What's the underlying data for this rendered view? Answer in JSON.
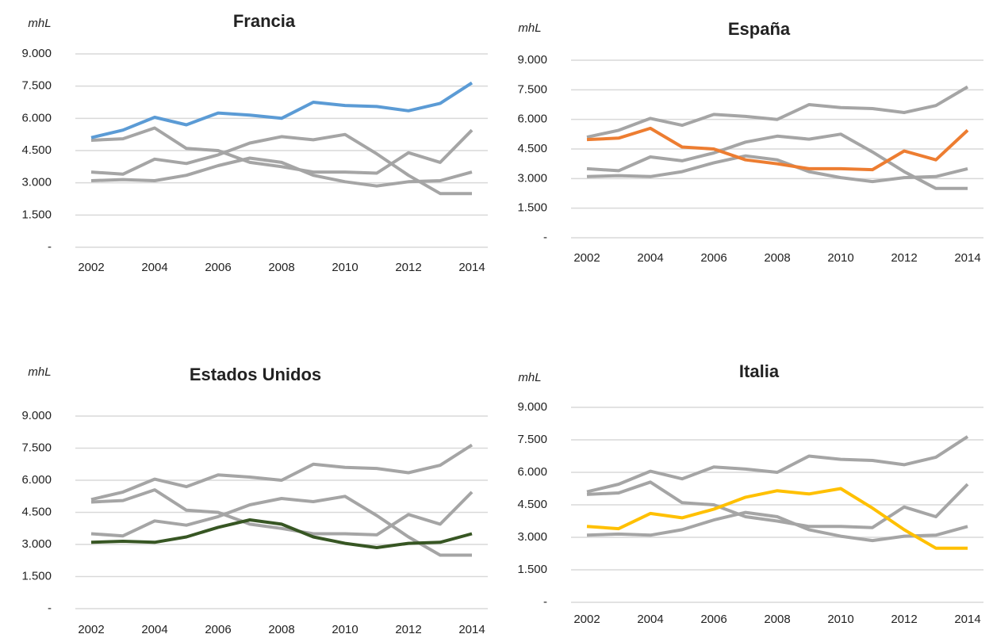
{
  "chart_data": [
    {
      "type": "line",
      "title": "Francia",
      "ylabel": "mhL",
      "x": [
        2002,
        2003,
        2004,
        2005,
        2006,
        2007,
        2008,
        2009,
        2010,
        2011,
        2012,
        2013,
        2014
      ],
      "series": [
        {
          "color": "#a5a5a5",
          "values": [
            4980,
            5050,
            5550,
            4600,
            4500,
            3950,
            3750,
            3500,
            3500,
            3450,
            4400,
            3950,
            5450
          ]
        },
        {
          "color": "#a5a5a5",
          "values": [
            3100,
            3150,
            3100,
            3350,
            3800,
            4150,
            3950,
            3350,
            3050,
            2850,
            3050,
            3100,
            3500
          ]
        },
        {
          "color": "#a5a5a5",
          "values": [
            3500,
            3400,
            4100,
            3900,
            4300,
            4850,
            5150,
            5000,
            5250,
            4350,
            3350,
            2500,
            2500
          ]
        },
        {
          "color": "#5b9bd5",
          "values": [
            5100,
            5450,
            6050,
            5700,
            6250,
            6150,
            6000,
            6750,
            6600,
            6550,
            6350,
            6700,
            7650
          ]
        }
      ],
      "xlim": [
        2001.5,
        2014.5
      ],
      "xticks": [
        2002,
        2004,
        2006,
        2008,
        2010,
        2012,
        2014
      ],
      "ylim": [
        0,
        9000
      ],
      "yticks": [
        {
          "value": 0,
          "label": "-"
        },
        {
          "value": 1500,
          "label": "1.500"
        },
        {
          "value": 3000,
          "label": "3.000"
        },
        {
          "value": 4500,
          "label": "4.500"
        },
        {
          "value": 6000,
          "label": "6.000"
        },
        {
          "value": 7500,
          "label": "7.500"
        },
        {
          "value": 9000,
          "label": "9.000"
        }
      ],
      "grid": true
    },
    {
      "type": "line",
      "title": "España",
      "ylabel": "mhL",
      "x": [
        2002,
        2003,
        2004,
        2005,
        2006,
        2007,
        2008,
        2009,
        2010,
        2011,
        2012,
        2013,
        2014
      ],
      "series": [
        {
          "color": "#a5a5a5",
          "values": [
            5100,
            5450,
            6050,
            5700,
            6250,
            6150,
            6000,
            6750,
            6600,
            6550,
            6350,
            6700,
            7650
          ]
        },
        {
          "color": "#a5a5a5",
          "values": [
            3100,
            3150,
            3100,
            3350,
            3800,
            4150,
            3950,
            3350,
            3050,
            2850,
            3050,
            3100,
            3500
          ]
        },
        {
          "color": "#a5a5a5",
          "values": [
            3500,
            3400,
            4100,
            3900,
            4300,
            4850,
            5150,
            5000,
            5250,
            4350,
            3350,
            2500,
            2500
          ]
        },
        {
          "color": "#ed7d31",
          "values": [
            4980,
            5050,
            5550,
            4600,
            4500,
            3950,
            3750,
            3500,
            3500,
            3450,
            4400,
            3950,
            5450
          ]
        }
      ],
      "xlim": [
        2001.5,
        2014.5
      ],
      "xticks": [
        2002,
        2004,
        2006,
        2008,
        2010,
        2012,
        2014
      ],
      "ylim": [
        0,
        9000
      ],
      "yticks": [
        {
          "value": 0,
          "label": "-"
        },
        {
          "value": 1500,
          "label": "1.500"
        },
        {
          "value": 3000,
          "label": "3.000"
        },
        {
          "value": 4500,
          "label": "4.500"
        },
        {
          "value": 6000,
          "label": "6.000"
        },
        {
          "value": 7500,
          "label": "7.500"
        },
        {
          "value": 9000,
          "label": "9.000"
        }
      ],
      "grid": true
    },
    {
      "type": "line",
      "title": "Estados Unidos",
      "ylabel": "mhL",
      "x": [
        2002,
        2003,
        2004,
        2005,
        2006,
        2007,
        2008,
        2009,
        2010,
        2011,
        2012,
        2013,
        2014
      ],
      "series": [
        {
          "color": "#a5a5a5",
          "values": [
            5100,
            5450,
            6050,
            5700,
            6250,
            6150,
            6000,
            6750,
            6600,
            6550,
            6350,
            6700,
            7650
          ]
        },
        {
          "color": "#a5a5a5",
          "values": [
            4980,
            5050,
            5550,
            4600,
            4500,
            3950,
            3750,
            3500,
            3500,
            3450,
            4400,
            3950,
            5450
          ]
        },
        {
          "color": "#a5a5a5",
          "values": [
            3500,
            3400,
            4100,
            3900,
            4300,
            4850,
            5150,
            5000,
            5250,
            4350,
            3350,
            2500,
            2500
          ]
        },
        {
          "color": "#375623",
          "values": [
            3100,
            3150,
            3100,
            3350,
            3800,
            4150,
            3950,
            3350,
            3050,
            2850,
            3050,
            3100,
            3500
          ]
        }
      ],
      "xlim": [
        2001.5,
        2014.5
      ],
      "xticks": [
        2002,
        2004,
        2006,
        2008,
        2010,
        2012,
        2014
      ],
      "ylim": [
        0,
        9000
      ],
      "yticks": [
        {
          "value": 0,
          "label": "-"
        },
        {
          "value": 1500,
          "label": "1.500"
        },
        {
          "value": 3000,
          "label": "3.000"
        },
        {
          "value": 4500,
          "label": "4.500"
        },
        {
          "value": 6000,
          "label": "6.000"
        },
        {
          "value": 7500,
          "label": "7.500"
        },
        {
          "value": 9000,
          "label": "9.000"
        }
      ],
      "grid": true
    },
    {
      "type": "line",
      "title": "Italia",
      "ylabel": "mhL",
      "x": [
        2002,
        2003,
        2004,
        2005,
        2006,
        2007,
        2008,
        2009,
        2010,
        2011,
        2012,
        2013,
        2014
      ],
      "series": [
        {
          "color": "#a5a5a5",
          "values": [
            5100,
            5450,
            6050,
            5700,
            6250,
            6150,
            6000,
            6750,
            6600,
            6550,
            6350,
            6700,
            7650
          ]
        },
        {
          "color": "#a5a5a5",
          "values": [
            4980,
            5050,
            5550,
            4600,
            4500,
            3950,
            3750,
            3500,
            3500,
            3450,
            4400,
            3950,
            5450
          ]
        },
        {
          "color": "#a5a5a5",
          "values": [
            3100,
            3150,
            3100,
            3350,
            3800,
            4150,
            3950,
            3350,
            3050,
            2850,
            3050,
            3100,
            3500
          ]
        },
        {
          "color": "#ffc000",
          "values": [
            3500,
            3400,
            4100,
            3900,
            4300,
            4850,
            5150,
            5000,
            5250,
            4350,
            3350,
            2500,
            2500
          ]
        }
      ],
      "xlim": [
        2001.5,
        2014.5
      ],
      "xticks": [
        2002,
        2004,
        2006,
        2008,
        2010,
        2012,
        2014
      ],
      "ylim": [
        0,
        9000
      ],
      "yticks": [
        {
          "value": 0,
          "label": "-"
        },
        {
          "value": 1500,
          "label": "1.500"
        },
        {
          "value": 3000,
          "label": "3.000"
        },
        {
          "value": 4500,
          "label": "4.500"
        },
        {
          "value": 6000,
          "label": "6.000"
        },
        {
          "value": 7500,
          "label": "7.500"
        },
        {
          "value": 9000,
          "label": "9.000"
        }
      ],
      "grid": true
    }
  ]
}
